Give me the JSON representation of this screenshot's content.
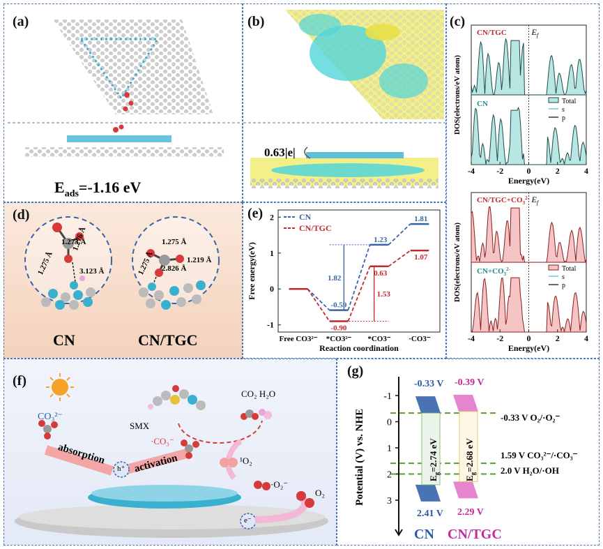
{
  "panel_a": {
    "label": "(a)",
    "energy_prefix": "E",
    "energy_sub": "ads",
    "energy_value": "=-1.16 eV"
  },
  "panel_b": {
    "label": "(b)",
    "charge": "0.63|e|"
  },
  "panel_c": {
    "label": "(c)",
    "charts": [
      {
        "top_title": "CN/TGC",
        "bottom_title": "CN",
        "legend": [
          "Total",
          "s",
          "p"
        ],
        "ef_label": "E",
        "ef_sub": "f",
        "ylabel": "DOS(electrons/eV atom)",
        "xlabel": "Energy(eV)",
        "xticks": [
          "-4",
          "-2",
          "0",
          "2",
          "4"
        ],
        "xlim": [
          -4,
          4
        ]
      },
      {
        "top_title": "CN/TGC+CO",
        "top_sub": "3",
        "top_sup": "2-",
        "bottom_title": "CN+CO",
        "bottom_sub": "3",
        "bottom_sup": "2-",
        "legend": [
          "Total",
          "s",
          "p"
        ],
        "ef_label": "E",
        "ef_sub": "f",
        "ylabel": "DOS(electrons/eV atom)",
        "xlabel": "Energy(eV)",
        "xticks": [
          "-4",
          "-2",
          "0",
          "2",
          "4"
        ],
        "xlim": [
          -4,
          4
        ]
      }
    ]
  },
  "panel_d": {
    "label": "(d)",
    "cn": {
      "title": "CN",
      "bonds": [
        "1.273 Å",
        "1.276 Å",
        "1.275 Å",
        "3.123 Å"
      ]
    },
    "cntgc": {
      "title": "CN/TGC",
      "bonds": [
        "1.275 Å",
        "1.219 Å",
        "1.275 Å",
        "2.826 Å"
      ]
    }
  },
  "panel_e": {
    "label": "(e)",
    "legend": [
      "CN",
      "CN/TGC"
    ],
    "colors": {
      "cn": "#3a62a7",
      "cntgc": "#c0282d"
    }
  },
  "chart_data": {
    "type": "line",
    "title": "",
    "xlabel": "Reaction coordination",
    "ylabel": "Free energy(eV)",
    "categories": [
      "Free CO3²⁻",
      "*CO3²⁻",
      "*CO3⁻",
      "·CO3⁻"
    ],
    "ylim": [
      -1.2,
      2.2
    ],
    "yticks": [
      "-1",
      "0",
      "1",
      "2"
    ],
    "series": [
      {
        "name": "CN",
        "values": [
          0,
          -0.59,
          1.23,
          1.81
        ],
        "labels": [
          "",
          "-0.59",
          "1.23",
          "1.81"
        ]
      },
      {
        "name": "CN/TGC",
        "values": [
          0,
          -0.9,
          0.63,
          1.07
        ],
        "labels": [
          "",
          "-0.90",
          "0.63",
          "1.07"
        ]
      }
    ],
    "annotations": [
      {
        "text": "1.82",
        "series": "CN"
      },
      {
        "text": "1.53",
        "series": "CN/TGC"
      }
    ]
  },
  "panel_f": {
    "label": "(f)",
    "smx": "SMX",
    "products": "CO₂ H₂O",
    "co3_ion": "CO₃²⁻",
    "co3_radical": "·CO₃⁻",
    "o2_singlet": "¹O₂",
    "o2_superoxide": "·O₂⁻",
    "o2": "O₂",
    "absorption": "absorption",
    "activation": "activation",
    "hole": "h⁺",
    "electron": "e⁻"
  },
  "panel_g": {
    "label": "(g)",
    "ylabel": "Potential (V) vs. NHE",
    "yticks": [
      "-1",
      "0",
      "1",
      "2",
      "3"
    ],
    "cn_name": "CN",
    "cntgc_name": "CN/TGC",
    "cn_cb": "-0.33 V",
    "cn_vb": "2.41 V",
    "cntgc_cb": "-0.39 V",
    "cntgc_vb": "2.29 V",
    "cn_gap": "E",
    "gap_sub": "g",
    "cn_gap_val": "=2.74 eV",
    "cntgc_gap_val": "=2.68 eV",
    "redox": [
      "-0.33 V  O₂/·O₂⁻",
      "1.59  V  CO₃²⁻/·CO₃⁻",
      "2.0  V  H₂O/·OH"
    ],
    "colors": {
      "cn_label": "#2a5aa8",
      "cntgc_label": "#c32aa0",
      "cn_cb_label": "#2a5aa8",
      "cntgc_cb_label": "#c32aa0"
    }
  }
}
